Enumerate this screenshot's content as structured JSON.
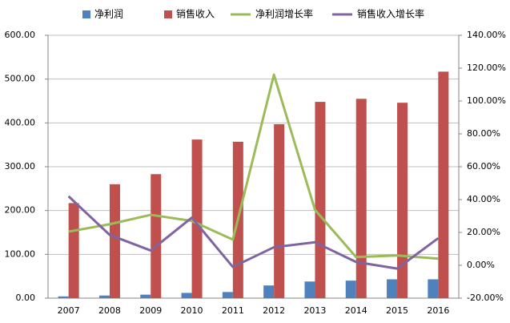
{
  "chart_data": {
    "type": "bar",
    "categories": [
      "2007",
      "2008",
      "2009",
      "2010",
      "2011",
      "2012",
      "2013",
      "2014",
      "2015",
      "2016"
    ],
    "series": [
      {
        "name": "净利润",
        "kind": "bar",
        "color": "#4f81bd",
        "values": [
          4,
          6,
          8,
          12,
          14,
          29,
          38,
          40,
          43,
          43
        ]
      },
      {
        "name": "销售收入",
        "kind": "bar",
        "color": "#c0504d",
        "values": [
          217,
          260,
          283,
          362,
          357,
          397,
          448,
          455,
          446,
          517
        ]
      },
      {
        "name": "净利润增长率",
        "kind": "line",
        "axis": "y2",
        "color": "#9bbb59",
        "values": [
          20.5,
          25,
          30.7,
          27,
          15.6,
          116,
          33.7,
          5,
          6,
          4
        ]
      },
      {
        "name": "销售收入增长率",
        "kind": "line",
        "axis": "y2",
        "color": "#8064a2",
        "values": [
          42,
          18.5,
          9,
          29,
          -1,
          11,
          14,
          2,
          -2,
          16.5
        ]
      }
    ],
    "ylim": [
      0,
      600
    ],
    "yticks": [
      {
        "value": 0,
        "label": "0.00"
      },
      {
        "value": 100,
        "label": "100.00"
      },
      {
        "value": 200,
        "label": "200.00"
      },
      {
        "value": 300,
        "label": "300.00"
      },
      {
        "value": 400,
        "label": "400.00"
      },
      {
        "value": 500,
        "label": "500.00"
      },
      {
        "value": 600,
        "label": "600.00"
      }
    ],
    "y2lim": [
      -20,
      140
    ],
    "y2ticks": [
      {
        "value": -20,
        "label": "-20.00%"
      },
      {
        "value": 0,
        "label": "0.00%"
      },
      {
        "value": 20,
        "label": "20.00%"
      },
      {
        "value": 40,
        "label": "40.00%"
      },
      {
        "value": 60,
        "label": "60.00%"
      },
      {
        "value": 80,
        "label": "80.00%"
      },
      {
        "value": 100,
        "label": "100.00%"
      },
      {
        "value": 120,
        "label": "120.00%"
      },
      {
        "value": 140,
        "label": "140.00%"
      }
    ],
    "grid": true,
    "legend": "top"
  }
}
